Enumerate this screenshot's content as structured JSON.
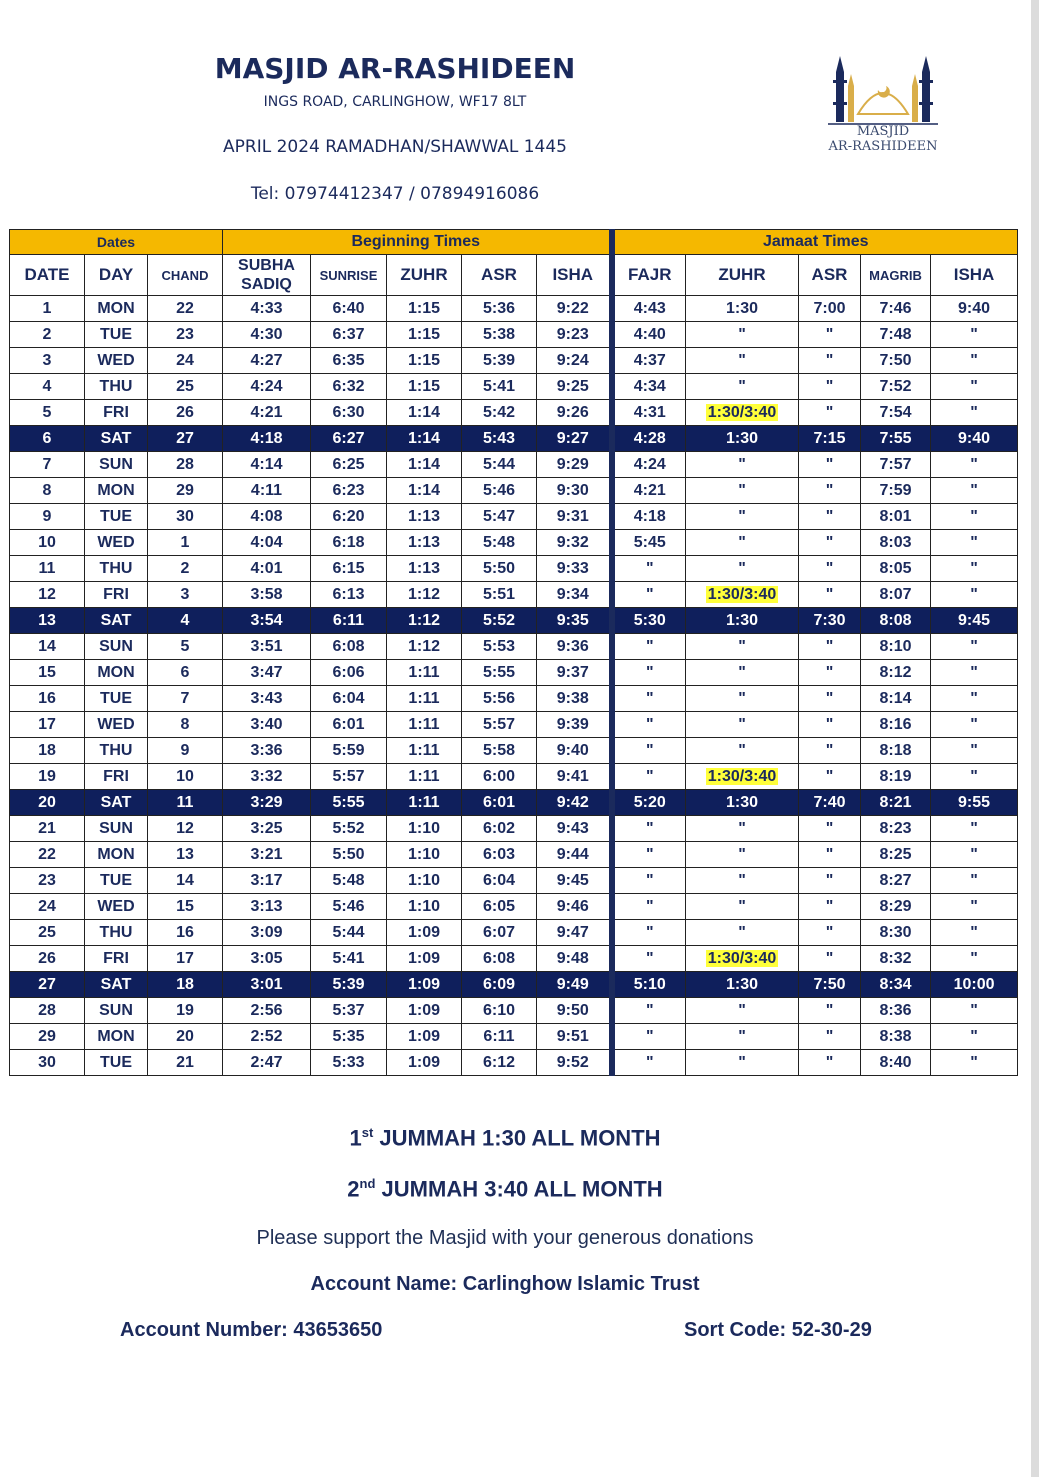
{
  "header": {
    "name": "MASJID AR-RASHIDEEN",
    "address": "INGS ROAD, CARLINGHOW, WF17 8LT",
    "period": "APRIL 2024 RAMADHAN/SHAWWAL 1445",
    "tel": "Tel: 07974412347 / 07894916086",
    "logo_line1": "MASJID",
    "logo_line2": "AR-RASHIDEEN"
  },
  "colors": {
    "navy": "#0f1f5c",
    "gold": "#f5b800",
    "highlight": "#ffff3a",
    "logo_gold": "#d9ae4a"
  },
  "table": {
    "groups": [
      "Dates",
      "Beginning Times",
      "Jamaat Times"
    ],
    "columns": [
      "DATE",
      "DAY",
      "CHAND",
      "SUBHA SADIQ",
      "SUNRISE",
      "ZUHR",
      "ASR",
      "ISHA",
      "FAJR",
      "ZUHR",
      "ASR",
      "MAGRIB",
      "ISHA"
    ],
    "rows": [
      [
        "1",
        "MON",
        "22",
        "4:33",
        "6:40",
        "1:15",
        "5:36",
        "9:22",
        "4:43",
        "1:30",
        "7:00",
        "7:46",
        "9:40"
      ],
      [
        "2",
        "TUE",
        "23",
        "4:30",
        "6:37",
        "1:15",
        "5:38",
        "9:23",
        "4:40",
        "\"",
        "\"",
        "7:48",
        "\""
      ],
      [
        "3",
        "WED",
        "24",
        "4:27",
        "6:35",
        "1:15",
        "5:39",
        "9:24",
        "4:37",
        "\"",
        "\"",
        "7:50",
        "\""
      ],
      [
        "4",
        "THU",
        "25",
        "4:24",
        "6:32",
        "1:15",
        "5:41",
        "9:25",
        "4:34",
        "\"",
        "\"",
        "7:52",
        "\""
      ],
      [
        "5",
        "FRI",
        "26",
        "4:21",
        "6:30",
        "1:14",
        "5:42",
        "9:26",
        "4:31",
        "1:30/3:40",
        "\"",
        "7:54",
        "\""
      ],
      [
        "6",
        "SAT",
        "27",
        "4:18",
        "6:27",
        "1:14",
        "5:43",
        "9:27",
        "4:28",
        "1:30",
        "7:15",
        "7:55",
        "9:40"
      ],
      [
        "7",
        "SUN",
        "28",
        "4:14",
        "6:25",
        "1:14",
        "5:44",
        "9:29",
        "4:24",
        "\"",
        "\"",
        "7:57",
        "\""
      ],
      [
        "8",
        "MON",
        "29",
        "4:11",
        "6:23",
        "1:14",
        "5:46",
        "9:30",
        "4:21",
        "\"",
        "\"",
        "7:59",
        "\""
      ],
      [
        "9",
        "TUE",
        "30",
        "4:08",
        "6:20",
        "1:13",
        "5:47",
        "9:31",
        "4:18",
        "\"",
        "\"",
        "8:01",
        "\""
      ],
      [
        "10",
        "WED",
        "1",
        "4:04",
        "6:18",
        "1:13",
        "5:48",
        "9:32",
        "5:45",
        "\"",
        "\"",
        "8:03",
        "\""
      ],
      [
        "11",
        "THU",
        "2",
        "4:01",
        "6:15",
        "1:13",
        "5:50",
        "9:33",
        "\"",
        "\"",
        "\"",
        "8:05",
        "\""
      ],
      [
        "12",
        "FRI",
        "3",
        "3:58",
        "6:13",
        "1:12",
        "5:51",
        "9:34",
        "\"",
        "1:30/3:40",
        "\"",
        "8:07",
        "\""
      ],
      [
        "13",
        "SAT",
        "4",
        "3:54",
        "6:11",
        "1:12",
        "5:52",
        "9:35",
        "5:30",
        "1:30",
        "7:30",
        "8:08",
        "9:45"
      ],
      [
        "14",
        "SUN",
        "5",
        "3:51",
        "6:08",
        "1:12",
        "5:53",
        "9:36",
        "\"",
        "\"",
        "\"",
        "8:10",
        "\""
      ],
      [
        "15",
        "MON",
        "6",
        "3:47",
        "6:06",
        "1:11",
        "5:55",
        "9:37",
        "\"",
        "\"",
        "\"",
        "8:12",
        "\""
      ],
      [
        "16",
        "TUE",
        "7",
        "3:43",
        "6:04",
        "1:11",
        "5:56",
        "9:38",
        "\"",
        "\"",
        "\"",
        "8:14",
        "\""
      ],
      [
        "17",
        "WED",
        "8",
        "3:40",
        "6:01",
        "1:11",
        "5:57",
        "9:39",
        "\"",
        "\"",
        "\"",
        "8:16",
        "\""
      ],
      [
        "18",
        "THU",
        "9",
        "3:36",
        "5:59",
        "1:11",
        "5:58",
        "9:40",
        "\"",
        "\"",
        "\"",
        "8:18",
        "\""
      ],
      [
        "19",
        "FRI",
        "10",
        "3:32",
        "5:57",
        "1:11",
        "6:00",
        "9:41",
        "\"",
        "1:30/3:40",
        "\"",
        "8:19",
        "\""
      ],
      [
        "20",
        "SAT",
        "11",
        "3:29",
        "5:55",
        "1:11",
        "6:01",
        "9:42",
        "5:20",
        "1:30",
        "7:40",
        "8:21",
        "9:55"
      ],
      [
        "21",
        "SUN",
        "12",
        "3:25",
        "5:52",
        "1:10",
        "6:02",
        "9:43",
        "\"",
        "\"",
        "\"",
        "8:23",
        "\""
      ],
      [
        "22",
        "MON",
        "13",
        "3:21",
        "5:50",
        "1:10",
        "6:03",
        "9:44",
        "\"",
        "\"",
        "\"",
        "8:25",
        "\""
      ],
      [
        "23",
        "TUE",
        "14",
        "3:17",
        "5:48",
        "1:10",
        "6:04",
        "9:45",
        "\"",
        "\"",
        "\"",
        "8:27",
        "\""
      ],
      [
        "24",
        "WED",
        "15",
        "3:13",
        "5:46",
        "1:10",
        "6:05",
        "9:46",
        "\"",
        "\"",
        "\"",
        "8:29",
        "\""
      ],
      [
        "25",
        "THU",
        "16",
        "3:09",
        "5:44",
        "1:09",
        "6:07",
        "9:47",
        "\"",
        "\"",
        "\"",
        "8:30",
        "\""
      ],
      [
        "26",
        "FRI",
        "17",
        "3:05",
        "5:41",
        "1:09",
        "6:08",
        "9:48",
        "\"",
        "1:30/3:40",
        "\"",
        "8:32",
        "\""
      ],
      [
        "27",
        "SAT",
        "18",
        "3:01",
        "5:39",
        "1:09",
        "6:09",
        "9:49",
        "5:10",
        "1:30",
        "7:50",
        "8:34",
        "10:00"
      ],
      [
        "28",
        "SUN",
        "19",
        "2:56",
        "5:37",
        "1:09",
        "6:10",
        "9:50",
        "\"",
        "\"",
        "\"",
        "8:36",
        "\""
      ],
      [
        "29",
        "MON",
        "20",
        "2:52",
        "5:35",
        "1:09",
        "6:11",
        "9:51",
        "\"",
        "\"",
        "\"",
        "8:38",
        "\""
      ],
      [
        "30",
        "TUE",
        "21",
        "2:47",
        "5:33",
        "1:09",
        "6:12",
        "9:52",
        "\"",
        "\"",
        "\"",
        "8:40",
        "\""
      ]
    ]
  },
  "footer": {
    "jummah1_ord": "1",
    "jummah1_sup": "st",
    "jummah1_text": " JUMMAH 1:30 ALL MONTH",
    "jummah2_ord": "2",
    "jummah2_sup": "nd",
    "jummah2_text": " JUMMAH 3:40 ALL MONTH",
    "donation": "Please support the Masjid with your generous donations",
    "account_name": "Account Name: Carlinghow Islamic Trust",
    "account_number": "Account Number: 43653650",
    "sort_code": "Sort Code: 52-30-29"
  }
}
